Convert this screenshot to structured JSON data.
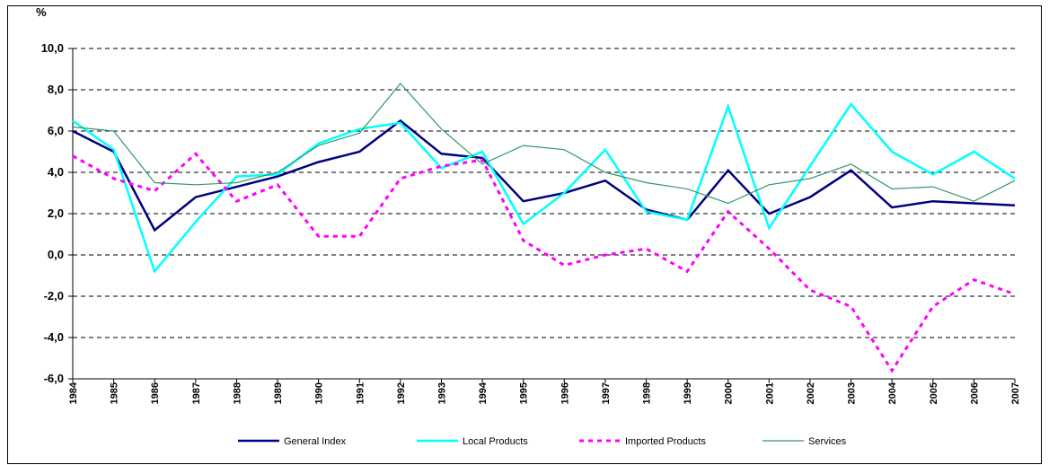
{
  "chart_data": {
    "type": "line",
    "y_label": "%",
    "categories": [
      "1984",
      "1985",
      "1986",
      "1987",
      "1988",
      "1989",
      "1990",
      "1991",
      "1992",
      "1993",
      "1994",
      "1995",
      "1996",
      "1997",
      "1998",
      "1999",
      "2000",
      "2001",
      "2002",
      "2003",
      "2004",
      "2005",
      "2006",
      "2007"
    ],
    "series": [
      {
        "name": "General Index",
        "color": "#000080",
        "values": [
          6.0,
          5.0,
          1.2,
          2.8,
          3.3,
          3.8,
          4.5,
          5.0,
          6.5,
          4.9,
          4.7,
          2.6,
          3.0,
          3.6,
          2.2,
          1.7,
          4.1,
          2.0,
          2.8,
          4.1,
          2.3,
          2.6,
          2.5,
          2.4
        ]
      },
      {
        "name": "Local Products",
        "color": "#00ffff",
        "values": [
          6.5,
          5.1,
          -0.8,
          1.6,
          3.8,
          3.9,
          5.4,
          6.1,
          6.4,
          4.2,
          5.0,
          1.5,
          3.0,
          5.1,
          2.1,
          1.7,
          7.2,
          1.3,
          4.3,
          7.3,
          5.0,
          3.9,
          5.0,
          3.7
        ]
      },
      {
        "name": "Imported Products",
        "color": "#ff00ff",
        "dashed": true,
        "values": [
          4.8,
          3.7,
          3.1,
          4.9,
          2.6,
          3.4,
          0.9,
          0.9,
          3.7,
          4.3,
          4.6,
          0.7,
          -0.5,
          0.0,
          0.3,
          -0.8,
          2.1,
          0.3,
          -1.7,
          -2.5,
          -5.6,
          -2.5,
          -1.2,
          -1.9
        ]
      },
      {
        "name": "Services",
        "color": "#339966",
        "values": [
          6.2,
          6.0,
          3.5,
          3.4,
          3.5,
          4.0,
          5.3,
          5.9,
          8.3,
          6.1,
          4.4,
          5.3,
          5.1,
          4.0,
          3.5,
          3.2,
          2.5,
          3.4,
          3.7,
          4.4,
          3.2,
          3.3,
          2.6,
          3.6
        ]
      }
    ],
    "ylim": [
      -6,
      10
    ],
    "yticks": [
      {
        "value": -6,
        "label": "-6,0"
      },
      {
        "value": -4,
        "label": "-4,0"
      },
      {
        "value": -2,
        "label": "-2,0"
      },
      {
        "value": 0,
        "label": "0,0"
      },
      {
        "value": 2,
        "label": "2,0"
      },
      {
        "value": 4,
        "label": "4,0"
      },
      {
        "value": 6,
        "label": "6,0"
      },
      {
        "value": 8,
        "label": "8,0"
      },
      {
        "value": 10,
        "label": "10,0"
      }
    ],
    "grid": true,
    "legend": "bottom"
  }
}
